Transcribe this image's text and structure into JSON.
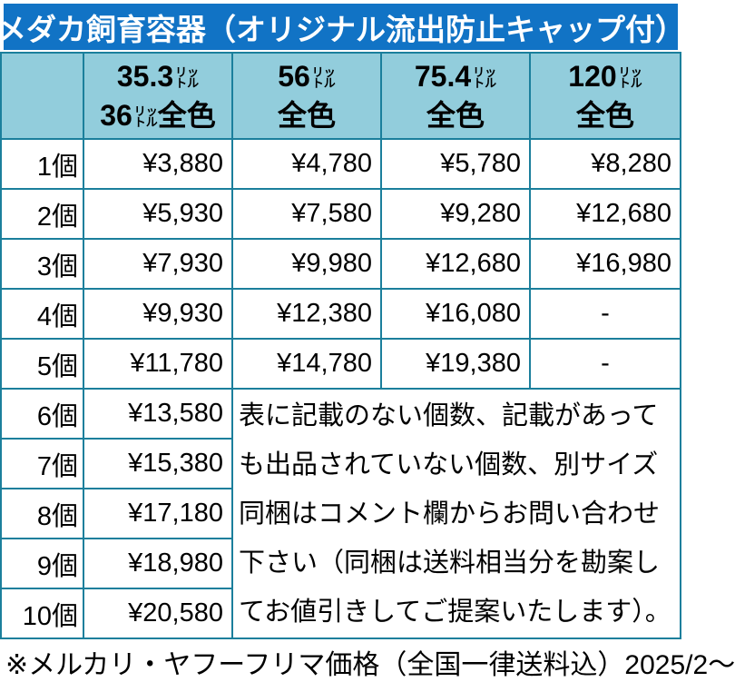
{
  "colors": {
    "banner_bg": "#1173C5",
    "banner_text": "#FFFFFF",
    "header_cell_bg": "#92CDDC",
    "grid_border": "#1B7F9C",
    "cell_bg": "#FFFFFF",
    "text": "#000000"
  },
  "banner": {
    "title": "メダカ飼育容器（オリジナル流出防止キャップ付）"
  },
  "table": {
    "corner_label": "",
    "unit": {
      "top": "リッ",
      "bottom": "トル"
    },
    "columns": [
      {
        "num": "35.3",
        "line2_num": "36",
        "line2_label": "全色"
      },
      {
        "num": "56",
        "line2_label": "全色"
      },
      {
        "num": "75.4",
        "line2_label": "全色"
      },
      {
        "num": "120",
        "line2_label": "全色"
      }
    ],
    "rows": [
      {
        "count": "1個",
        "c1": "¥3,880",
        "c2": "¥4,780",
        "c3": "¥5,780",
        "c4": "¥8,280"
      },
      {
        "count": "2個",
        "c1": "¥5,930",
        "c2": "¥7,580",
        "c3": "¥9,280",
        "c4": "¥12,680"
      },
      {
        "count": "3個",
        "c1": "¥7,930",
        "c2": "¥9,980",
        "c3": "¥12,680",
        "c4": "¥16,980"
      },
      {
        "count": "4個",
        "c1": "¥9,930",
        "c2": "¥12,380",
        "c3": "¥16,080",
        "c4": "-"
      },
      {
        "count": "5個",
        "c1": "¥11,780",
        "c2": "¥14,780",
        "c3": "¥19,380",
        "c4": "-"
      },
      {
        "count": "6個",
        "c1": "¥13,580"
      },
      {
        "count": "7個",
        "c1": "¥15,380"
      },
      {
        "count": "8個",
        "c1": "¥17,180"
      },
      {
        "count": "9個",
        "c1": "¥18,980"
      },
      {
        "count": "10個",
        "c1": "¥20,580"
      }
    ],
    "note": "表に記載のない個数、記載があっても出品されていない個数、別サイズ同梱はコメント欄からお問い合わせ下さい（同梱は送料相当分を勘案してお値引きしてご提案いたします）。"
  },
  "footer": {
    "text": "※メルカリ・ヤフーフリマ価格（全国一律送料込）2025/2～"
  }
}
